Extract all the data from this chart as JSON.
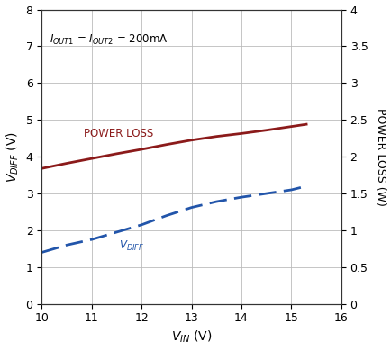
{
  "vin": [
    10,
    10.5,
    11,
    11.5,
    12,
    12.5,
    13,
    13.5,
    14,
    14.5,
    15,
    15.3
  ],
  "vdiff": [
    1.4,
    1.6,
    1.75,
    1.95,
    2.15,
    2.4,
    2.62,
    2.78,
    2.9,
    3.0,
    3.1,
    3.2
  ],
  "power_loss_v": [
    3.68,
    3.82,
    3.95,
    4.08,
    4.2,
    4.33,
    4.45,
    4.55,
    4.63,
    4.72,
    4.82,
    4.88
  ],
  "xlim": [
    10,
    16
  ],
  "ylim_left": [
    0,
    8
  ],
  "ylim_right": [
    0,
    4
  ],
  "xticks": [
    10,
    11,
    12,
    13,
    14,
    15,
    16
  ],
  "yticks_left": [
    0,
    1,
    2,
    3,
    4,
    5,
    6,
    7,
    8
  ],
  "yticks_right": [
    0,
    0.5,
    1.0,
    1.5,
    2.0,
    2.5,
    3.0,
    3.5,
    4.0
  ],
  "xlabel": "$V_{IN}$ (V)",
  "ylabel_left": "$V_{DIFF}$ (V)",
  "ylabel_right": "POWER LOSS (W)",
  "annotation_iout_plain": "OUT1",
  "label_power": "POWER LOSS",
  "label_vdiff": "$V_{DIFF}$",
  "color_power": "#8B1A1A",
  "color_vdiff": "#2255AA",
  "grid_color": "#BBBBBB",
  "bg_color": "#FFFFFF",
  "text_color": "#000000"
}
